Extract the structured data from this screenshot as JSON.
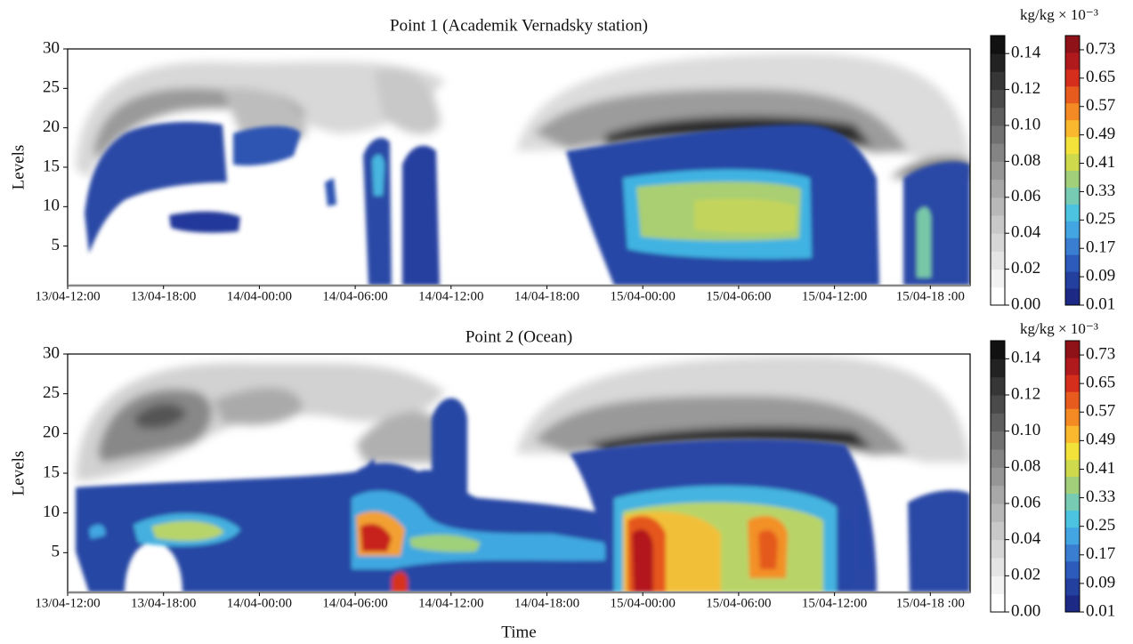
{
  "chart_data": [
    {
      "type": "contour",
      "title": "Point 1 (Academik Vernadsky station)",
      "ylabel": "Levels",
      "categories": [
        "13/04-12:00",
        "13/04-18:00",
        "14/04-00:00",
        "14/04-06:00",
        "14/04-12:00",
        "14/04-18:00",
        "15/04-00:00",
        "15/04-06:00",
        "15/04-12:00",
        "15/04-18 :00"
      ],
      "ylim": [
        0,
        30
      ],
      "yticks": [
        5,
        10,
        15,
        20,
        25,
        30
      ],
      "colorbar_label": "kg/kg × 10⁻³",
      "colorbars": [
        {
          "lim": [
            0,
            0.15
          ],
          "ticks": [
            {
              "value": 0,
              "label": "0.00"
            },
            0.02,
            0.04,
            0.06,
            0.08,
            {
              "value": 0.1,
              "label": "0.10"
            },
            0.12,
            0.14
          ],
          "colors": [
            "#ffffff",
            "#f2f2f2",
            "#e4e4e4",
            "#d6d6d6",
            "#c8c8c8",
            "#b8b8b8",
            "#a8a8a8",
            "#969696",
            "#848484",
            "#717171",
            "#5e5e5e",
            "#4a4a4a",
            "#363636",
            "#222222",
            "#111111"
          ]
        },
        {
          "lim": [
            0.01,
            0.77
          ],
          "ticks": [
            0.01,
            0.09,
            0.17,
            0.25,
            0.33,
            0.41,
            0.49,
            0.57,
            0.65,
            0.73
          ],
          "colors": [
            "#1c2a86",
            "#23409f",
            "#2c5bbb",
            "#3a7ed2",
            "#43a6e2",
            "#4cc3e0",
            "#77cbb2",
            "#a2d07a",
            "#cfd94c",
            "#f2e23a",
            "#f9b82e",
            "#f38a24",
            "#e85b1e",
            "#d62e1c",
            "#b01a1c",
            "#8e1218"
          ]
        }
      ]
    },
    {
      "type": "contour",
      "title": "Point 2 (Ocean)",
      "ylabel": "Levels",
      "xlabel": "Time",
      "categories": [
        "13/04-12:00",
        "13/04-18:00",
        "14/04-00:00",
        "14/04-06:00",
        "14/04-12:00",
        "14/04-18:00",
        "15/04-00:00",
        "15/04-06:00",
        "15/04-12:00",
        "15/04-18 :00"
      ],
      "ylim": [
        0,
        30
      ],
      "yticks": [
        5,
        10,
        15,
        20,
        25,
        30
      ],
      "colorbar_label": "kg/kg × 10⁻³",
      "colorbars": [
        {
          "lim": [
            0,
            0.15
          ],
          "ticks": [
            {
              "value": 0,
              "label": "0.00"
            },
            0.02,
            0.04,
            0.06,
            0.08,
            {
              "value": 0.1,
              "label": "0.10"
            },
            0.12,
            0.14
          ],
          "colors": [
            "#ffffff",
            "#f2f2f2",
            "#e4e4e4",
            "#d6d6d6",
            "#c8c8c8",
            "#b8b8b8",
            "#a8a8a8",
            "#969696",
            "#848484",
            "#717171",
            "#5e5e5e",
            "#4a4a4a",
            "#363636",
            "#222222",
            "#111111"
          ]
        },
        {
          "lim": [
            0.01,
            0.77
          ],
          "ticks": [
            0.01,
            0.09,
            0.17,
            0.25,
            0.33,
            0.41,
            0.49,
            0.57,
            0.65,
            0.73
          ],
          "colors": [
            "#1c2a86",
            "#23409f",
            "#2c5bbb",
            "#3a7ed2",
            "#43a6e2",
            "#4cc3e0",
            "#77cbb2",
            "#a2d07a",
            "#cfd94c",
            "#f2e23a",
            "#f9b82e",
            "#f38a24",
            "#e85b1e",
            "#d62e1c",
            "#b01a1c",
            "#8e1218"
          ]
        }
      ]
    }
  ]
}
